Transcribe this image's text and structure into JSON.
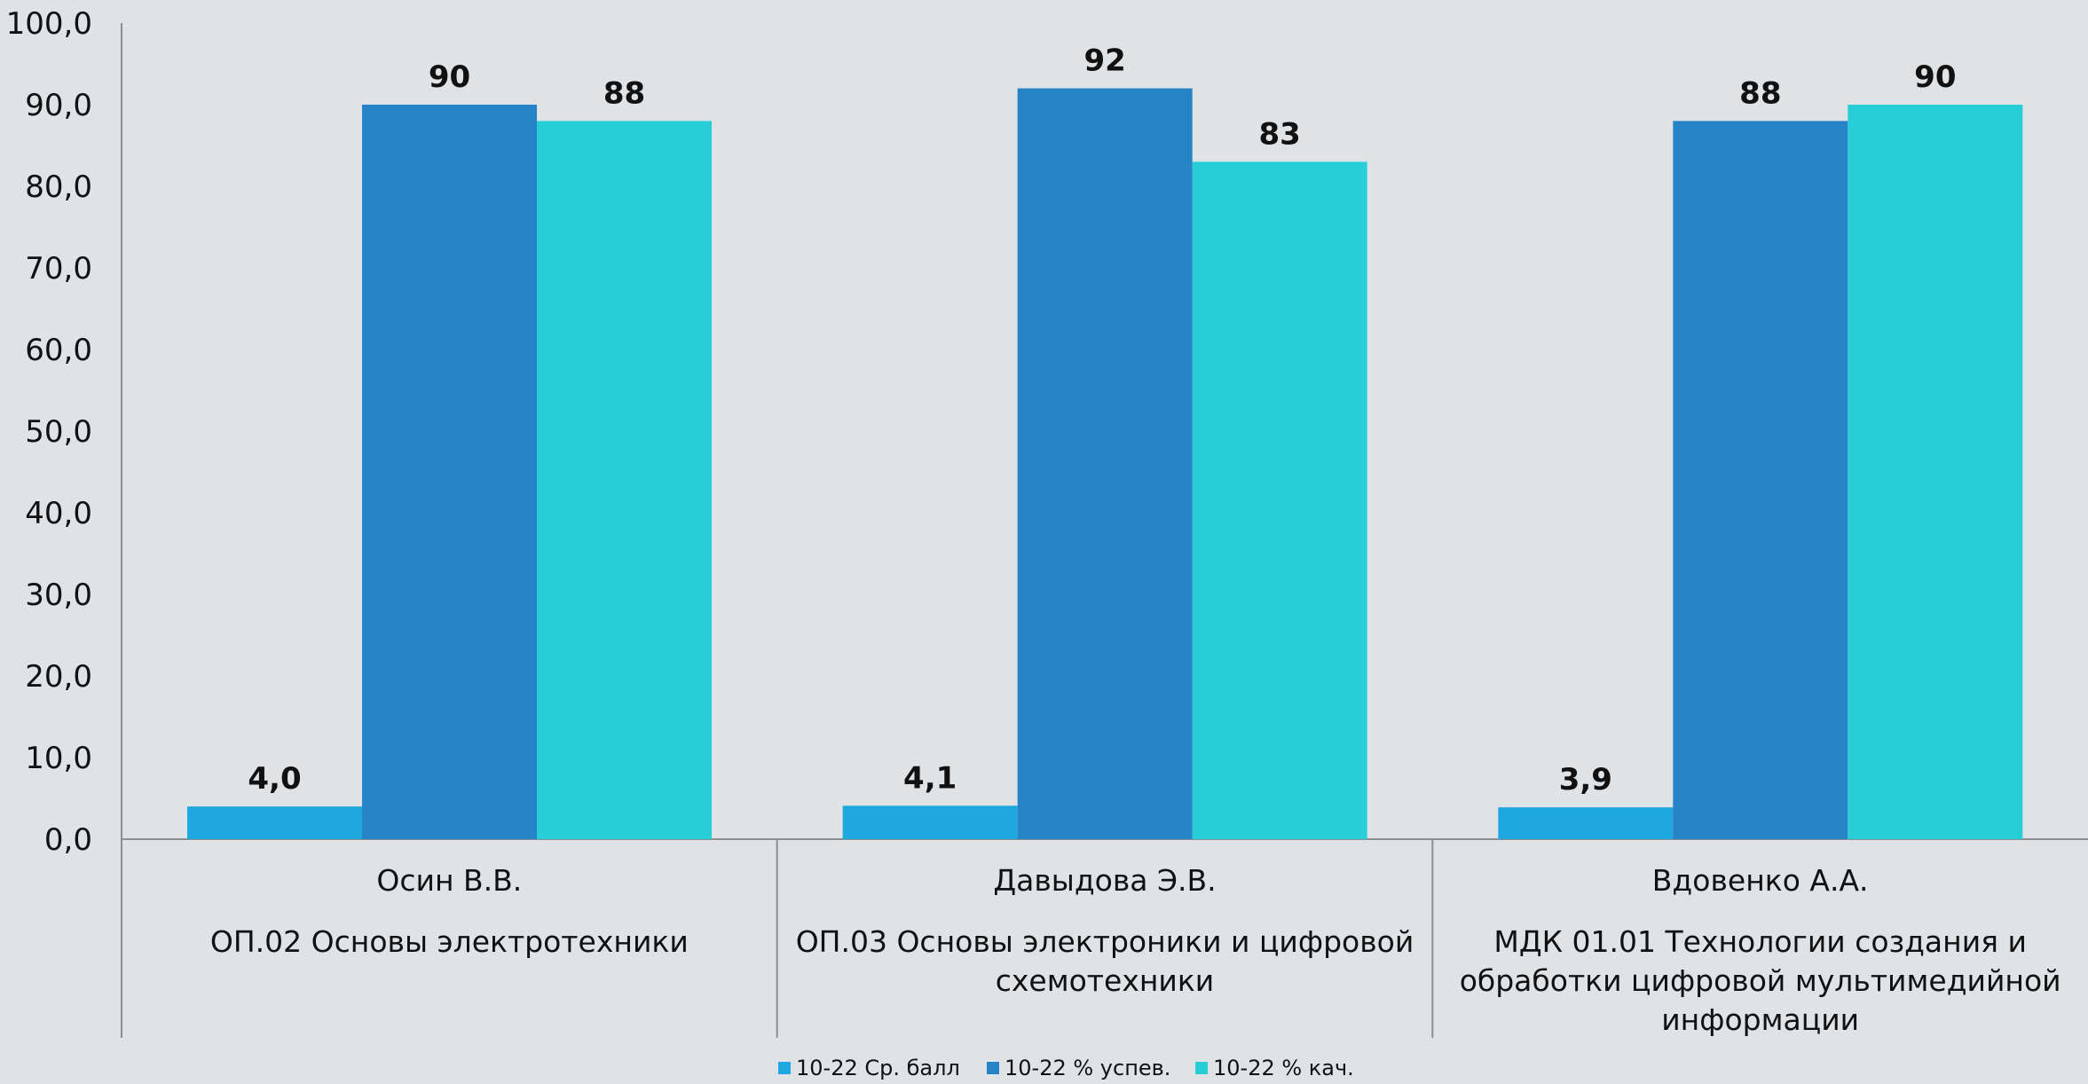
{
  "chart_data": {
    "type": "bar",
    "categories": [
      {
        "line1": "Осин В.В.",
        "line2": [
          "ОП.02 Основы электротехники"
        ]
      },
      {
        "line1": "Давыдова Э.В.",
        "line2": [
          "ОП.03 Основы электроники и цифровой",
          "схемотехники"
        ]
      },
      {
        "line1": "Вдовенко А.А.",
        "line2": [
          "МДК 01.01 Технологии создания и",
          "обработки цифровой мультимедийной",
          "информации"
        ]
      }
    ],
    "series": [
      {
        "name": "10-22 Ср. балл",
        "color": "#1fa8e0",
        "values": [
          4.0,
          4.1,
          3.9
        ],
        "labels": [
          "4,0",
          "4,1",
          "3,9"
        ]
      },
      {
        "name": "10-22 % успев.",
        "color": "#2683c6",
        "values": [
          90,
          92,
          88
        ],
        "labels": [
          "90",
          "92",
          "88"
        ]
      },
      {
        "name": "10-22 % кач.",
        "color": "#27ced7",
        "values": [
          88,
          83,
          90
        ],
        "labels": [
          "88",
          "83",
          "90"
        ]
      }
    ],
    "yticks": [
      "0,0",
      "10,0",
      "20,0",
      "30,0",
      "40,0",
      "50,0",
      "60,0",
      "70,0",
      "80,0",
      "90,0",
      "100,0"
    ],
    "ylim": [
      0,
      100
    ],
    "grid": false,
    "legend": "bottom"
  }
}
